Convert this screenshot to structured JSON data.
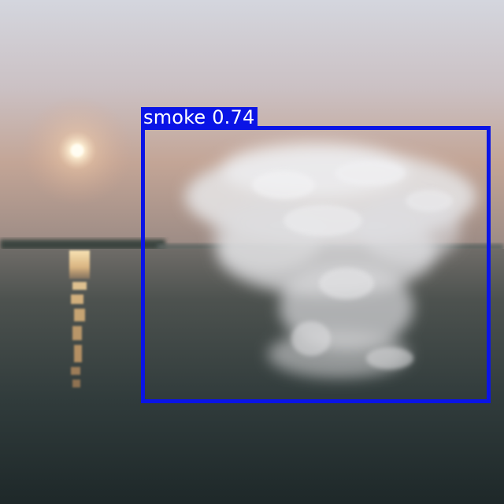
{
  "detection": {
    "label_text": "smoke 0.74",
    "class": "smoke",
    "confidence": 0.74,
    "box_color": "#0a14e6",
    "label_text_color": "#ffffff"
  },
  "scene": {
    "sky_top_color": "#cfd3dc",
    "sky_horizon_color": "#cfa890",
    "water_color": "#33403f",
    "sun_color": "#fff6e0",
    "smoke_color": "#e8e8ea"
  }
}
